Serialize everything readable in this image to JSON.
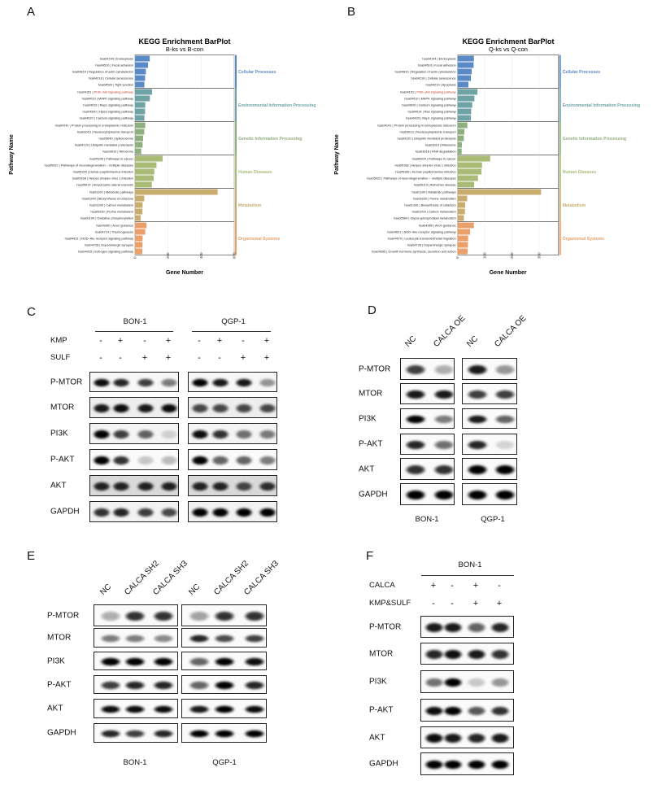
{
  "panels": {
    "A": "A",
    "B": "B",
    "C": "C",
    "D": "D",
    "E": "E",
    "F": "F"
  },
  "chart_data": [
    {
      "type": "bar",
      "orientation": "horizontal",
      "title": "KEGG Enrichment BarPlot",
      "subtitle": "B-ks vs B-con",
      "xlabel": "Gene Number",
      "ylabel": "Pathway Name",
      "xticks": [
        "0",
        "200",
        "400",
        "600"
      ],
      "xlim": [
        0,
        600
      ],
      "grid": true,
      "highlight_color": "#c0392b",
      "groups": [
        {
          "name": "Cellular Processes",
          "color": "#5b8bc4",
          "pathways": [
            {
              "id": "hsa04144",
              "name": "Endocytosis",
              "value": 89
            },
            {
              "id": "hsa04510",
              "name": "Focal adhesion",
              "value": 79
            },
            {
              "id": "hsa04810",
              "name": "Regulation of actin cytoskeleton",
              "value": 66
            },
            {
              "id": "hsa04218",
              "name": "Cellular senescence",
              "value": 61
            },
            {
              "id": "hsa04530",
              "name": "Tight junction",
              "value": 57
            }
          ]
        },
        {
          "name": "Environmental Information Processing",
          "color": "#6fa3a6",
          "pathways": [
            {
              "id": "hsa04151",
              "name": "PI3K−Akt signaling pathway",
              "value": 103,
              "highlight": true
            },
            {
              "id": "hsa04010",
              "name": "MAPK signaling pathway",
              "value": 90
            },
            {
              "id": "hsa04015",
              "name": "Rap1 signaling pathway",
              "value": 62
            },
            {
              "id": "hsa04390",
              "name": "Hippo signaling pathway",
              "value": 61
            },
            {
              "id": "hsa04020",
              "name": "Calcium signaling pathway",
              "value": 57
            }
          ]
        },
        {
          "name": "Genetic Information Processing",
          "color": "#8fb07e",
          "pathways": [
            {
              "id": "hsa04141",
              "name": "Protein processing in endoplasmic reticulum",
              "value": 62
            },
            {
              "id": "hsa03013",
              "name": "Nucleocytoplasmic transport",
              "value": 56
            },
            {
              "id": "hsa03040",
              "name": "Spliceosome",
              "value": 49
            },
            {
              "id": "hsa04120",
              "name": "Ubiquitin mediated proteolysis",
              "value": 46
            },
            {
              "id": "hsa03010",
              "name": "Ribosome",
              "value": 38
            }
          ]
        },
        {
          "name": "Human Diseases",
          "color": "#a9bb76",
          "pathways": [
            {
              "id": "hsa05200",
              "name": "Pathways in cancer",
              "value": 167
            },
            {
              "id": "hsa05022",
              "name": "Pathways of neurodegeneration − multiple diseases",
              "value": 130
            },
            {
              "id": "hsa05165",
              "name": "Human papillomavirus infection",
              "value": 117
            },
            {
              "id": "hsa05168",
              "name": "Herpes simplex virus 1 infection",
              "value": 113
            },
            {
              "id": "hsa05014",
              "name": "Amyotrophic lateral sclerosis",
              "value": 102
            }
          ]
        },
        {
          "name": "Metabolism",
          "color": "#c9ad6e",
          "pathways": [
            {
              "id": "hsa01100",
              "name": "Metabolic pathways",
              "value": 500
            },
            {
              "id": "hsa01240",
              "name": "Biosynthesis of cofactors",
              "value": 56
            },
            {
              "id": "hsa01200",
              "name": "Carbon metabolism",
              "value": 46
            },
            {
              "id": "hsa00230",
              "name": "Purine metabolism",
              "value": 45
            },
            {
              "id": "hsa00190",
              "name": "Oxidative phosphorylation",
              "value": 34
            }
          ]
        },
        {
          "name": "Organismal Systems",
          "color": "#e9a06a",
          "pathways": [
            {
              "id": "hsa04360",
              "name": "Axon guidance",
              "value": 70
            },
            {
              "id": "hsa04714",
              "name": "Thermogenesis",
              "value": 62
            },
            {
              "id": "hsa04621",
              "name": "NOD−like receptor signaling pathway",
              "value": 46
            },
            {
              "id": "hsa04728",
              "name": "Dopaminergic synapse",
              "value": 45
            },
            {
              "id": "hsa04915",
              "name": "Estrogen signaling pathway",
              "value": 44
            }
          ]
        }
      ]
    },
    {
      "type": "bar",
      "orientation": "horizontal",
      "title": "KEGG Enrichment BarPlot",
      "subtitle": "Q-ks vs Q-con",
      "xlabel": "Gene Number",
      "ylabel": "Pathway Name",
      "xticks": [
        "0",
        "100",
        "200",
        "300"
      ],
      "xlim": [
        0,
        371
      ],
      "grid": true,
      "highlight_color": "#c0392b",
      "groups": [
        {
          "name": "Cellular Processes",
          "color": "#5b8bc4",
          "pathways": [
            {
              "id": "hsa04144",
              "name": "Endocytosis",
              "value": 60
            },
            {
              "id": "hsa04510",
              "name": "Focal adhesion",
              "value": 59
            },
            {
              "id": "hsa04810",
              "name": "Regulation of actin cytoskeleton",
              "value": 52
            },
            {
              "id": "hsa04218",
              "name": "Cellular senescence",
              "value": 49
            },
            {
              "id": "hsa04210",
              "name": "Apoptosis",
              "value": 40
            }
          ]
        },
        {
          "name": "Environmental Information Processing",
          "color": "#6fa3a6",
          "pathways": [
            {
              "id": "hsa04151",
              "name": "PI3K−Akt signaling pathway",
              "value": 73,
              "highlight": true
            },
            {
              "id": "hsa04010",
              "name": "MAPK signaling pathway",
              "value": 62
            },
            {
              "id": "hsa04020",
              "name": "Calcium signaling pathway",
              "value": 54
            },
            {
              "id": "hsa04014",
              "name": "Ras signaling pathway",
              "value": 50
            },
            {
              "id": "hsa04015",
              "name": "Rap1 signaling pathway",
              "value": 49
            }
          ]
        },
        {
          "name": "Genetic Information Processing",
          "color": "#8fb07e",
          "pathways": [
            {
              "id": "hsa04141",
              "name": "Protein processing in endoplasmic reticulum",
              "value": 36
            },
            {
              "id": "hsa03013",
              "name": "Nucleocytoplasmic transport",
              "value": 25
            },
            {
              "id": "hsa04120",
              "name": "Ubiquitin mediated proteolysis",
              "value": 23
            },
            {
              "id": "hsa03010",
              "name": "Ribosome",
              "value": 16
            },
            {
              "id": "hsa03018",
              "name": "RNA degradation",
              "value": 15
            }
          ]
        },
        {
          "name": "Human Diseases",
          "color": "#a9bb76",
          "pathways": [
            {
              "id": "hsa05200",
              "name": "Pathways in cancer",
              "value": 120
            },
            {
              "id": "hsa05168",
              "name": "Herpes simplex virus 1 infection",
              "value": 90
            },
            {
              "id": "hsa05165",
              "name": "Human papillomavirus infection",
              "value": 88
            },
            {
              "id": "hsa05022",
              "name": "Pathways of neurodegeneration − multiple diseases",
              "value": 75
            },
            {
              "id": "hsa05010",
              "name": "Alzheimer disease",
              "value": 61
            }
          ]
        },
        {
          "name": "Metabolism",
          "color": "#c9ad6e",
          "pathways": [
            {
              "id": "hsa01100",
              "name": "Metabolic pathways",
              "value": 307
            },
            {
              "id": "hsa00230",
              "name": "Purine metabolism",
              "value": 35
            },
            {
              "id": "hsa01240",
              "name": "Biosynthesis of cofactors",
              "value": 28
            },
            {
              "id": "hsa01200",
              "name": "Carbon metabolism",
              "value": 27
            },
            {
              "id": "hsa00564",
              "name": "Glycerophospholipid metabolism",
              "value": 23
            }
          ]
        },
        {
          "name": "Organismal Systems",
          "color": "#e9a06a",
          "pathways": [
            {
              "id": "hsa04360",
              "name": "Axon guidance",
              "value": 60
            },
            {
              "id": "hsa04621",
              "name": "NOD−like receptor signaling pathway",
              "value": 46
            },
            {
              "id": "hsa04670",
              "name": "Leukocyte transendothelial migration",
              "value": 39
            },
            {
              "id": "hsa04728",
              "name": "Dopaminergic synapse",
              "value": 38
            },
            {
              "id": "hsa04935",
              "name": "Growth hormone synthesis, secretion and action",
              "value": 37
            }
          ]
        }
      ]
    }
  ],
  "blots": {
    "C": {
      "rows": [
        "P-MTOR",
        "MTOR",
        "PI3K",
        "P-AKT",
        "AKT",
        "GAPDH"
      ],
      "conditions": [
        {
          "name": "KMP",
          "signs": [
            "-",
            "+",
            "-",
            "+"
          ]
        },
        {
          "name": "SULF",
          "signs": [
            "-",
            "-",
            "+",
            "+"
          ]
        }
      ],
      "groups": [
        {
          "cell_line": "BON-1",
          "band_intensity": [
            [
              0.95,
              0.85,
              0.75,
              0.5
            ],
            [
              0.9,
              0.95,
              0.9,
              0.95
            ],
            [
              1,
              0.75,
              0.6,
              0.15
            ],
            [
              1,
              0.8,
              0.2,
              0.25
            ],
            [
              0.85,
              0.85,
              0.85,
              0.85
            ],
            [
              0.8,
              0.85,
              0.75,
              0.7
            ]
          ]
        },
        {
          "cell_line": "QGP-1",
          "band_intensity": [
            [
              1,
              0.9,
              0.9,
              0.4
            ],
            [
              0.7,
              0.7,
              0.7,
              0.7
            ],
            [
              0.95,
              0.8,
              0.55,
              0.5
            ],
            [
              1,
              0.6,
              0.6,
              0.5
            ],
            [
              0.85,
              0.85,
              0.7,
              0.8
            ],
            [
              1,
              1,
              1,
              1
            ]
          ]
        }
      ]
    },
    "D": {
      "rows": [
        "P-MTOR",
        "MTOR",
        "PI3K",
        "P-AKT",
        "AKT",
        "GAPDH"
      ],
      "lanes": [
        "NC",
        "CALCA OE"
      ],
      "groups": [
        {
          "cell_line": "BON-1",
          "band_intensity": [
            [
              0.75,
              0.3
            ],
            [
              0.9,
              0.9
            ],
            [
              1,
              0.5
            ],
            [
              0.85,
              0.55
            ],
            [
              0.8,
              0.8
            ],
            [
              1,
              1
            ]
          ]
        },
        {
          "cell_line": "QGP-1",
          "band_intensity": [
            [
              0.9,
              0.4
            ],
            [
              0.75,
              0.75
            ],
            [
              0.9,
              0.6
            ],
            [
              0.85,
              0.15
            ],
            [
              1,
              1
            ],
            [
              1,
              1
            ]
          ]
        }
      ]
    },
    "E": {
      "rows": [
        "P-MTOR",
        "MTOR",
        "PI3K",
        "P-AKT",
        "AKT",
        "GAPDH"
      ],
      "lanes": [
        "NC",
        "CALCA SH2",
        "CALCA SH3"
      ],
      "groups": [
        {
          "cell_line": "BON-1",
          "band_intensity": [
            [
              0.3,
              0.8,
              0.8
            ],
            [
              0.5,
              0.5,
              0.45
            ],
            [
              1,
              1,
              1
            ],
            [
              0.75,
              0.85,
              0.85
            ],
            [
              0.95,
              0.95,
              0.95
            ],
            [
              0.85,
              0.75,
              0.85
            ]
          ]
        },
        {
          "cell_line": "QGP-1",
          "band_intensity": [
            [
              0.35,
              0.8,
              0.8
            ],
            [
              0.85,
              0.7,
              0.75
            ],
            [
              0.6,
              1,
              0.95
            ],
            [
              0.6,
              1,
              0.85
            ],
            [
              0.9,
              1,
              0.95
            ],
            [
              1,
              1,
              1
            ]
          ]
        }
      ]
    },
    "F": {
      "rows": [
        "P-MTOR",
        "MTOR",
        "PI3K",
        "P-AKT",
        "AKT",
        "GAPDH"
      ],
      "conditions": [
        {
          "name": "CALCA",
          "signs": [
            "+",
            "-",
            "+",
            "-"
          ]
        },
        {
          "name": "KMP&SULF",
          "signs": [
            "-",
            "-",
            "+",
            "+"
          ]
        }
      ],
      "groups": [
        {
          "cell_line": "BON-1",
          "band_intensity": [
            [
              0.9,
              0.9,
              0.6,
              0.85
            ],
            [
              0.85,
              0.95,
              0.9,
              0.8
            ],
            [
              0.55,
              1,
              0.2,
              0.4
            ],
            [
              0.95,
              1,
              0.65,
              0.8
            ],
            [
              0.95,
              0.9,
              0.85,
              0.9
            ],
            [
              1,
              1,
              1,
              1
            ]
          ]
        }
      ]
    }
  }
}
